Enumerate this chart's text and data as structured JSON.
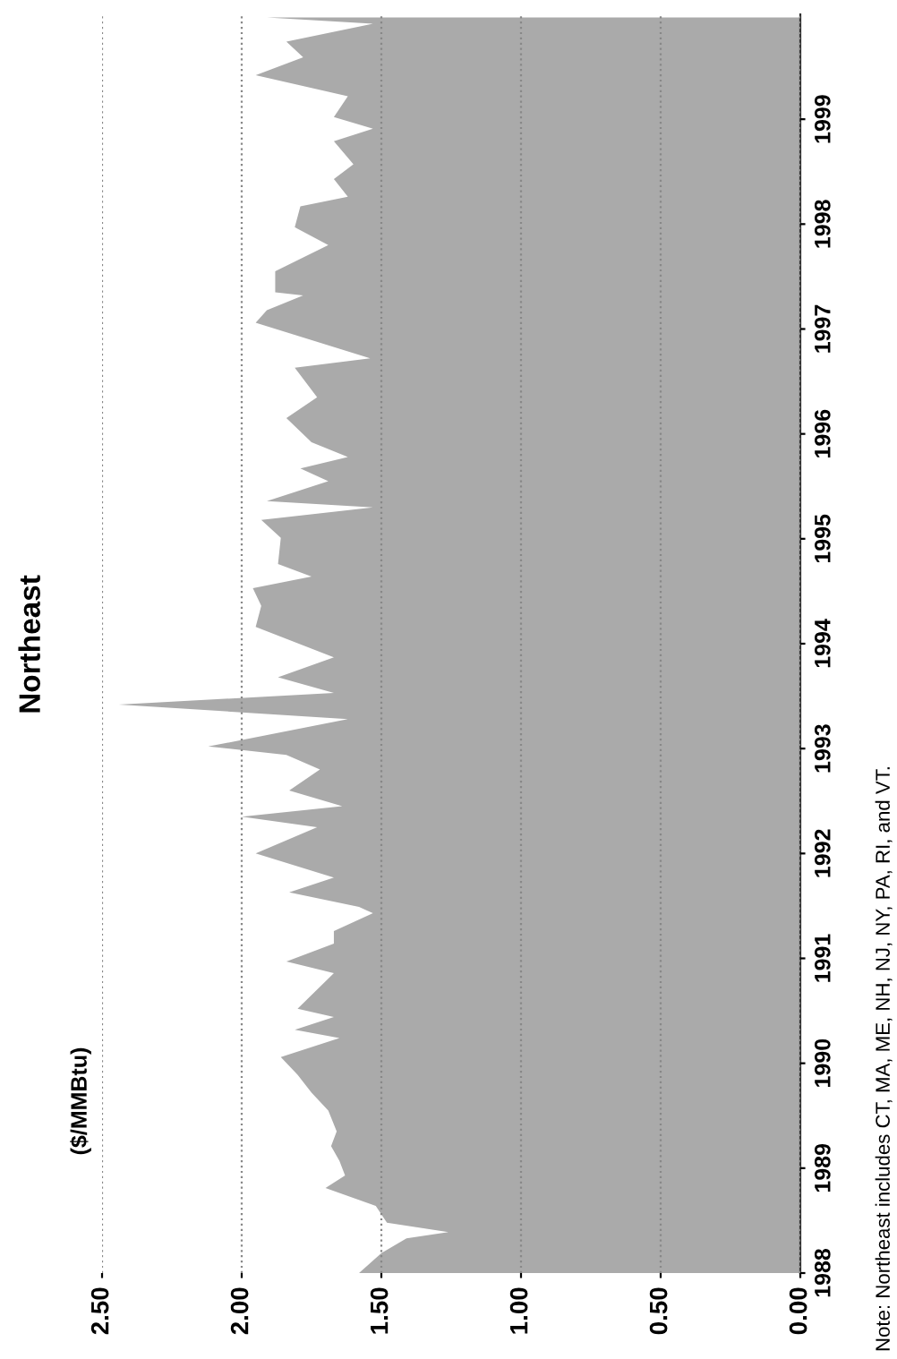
{
  "chart_data": {
    "type": "area",
    "title": "Northeast",
    "orientation": "horizontal",
    "annotations": [
      "($/MMBtu)",
      "Note: Northeast includes CT, MA, ME, NH, NJ, NY, PA, RI, and VT."
    ],
    "x": [
      1988.0,
      1988.19,
      1988.33,
      1988.39,
      1988.48,
      1988.64,
      1988.81,
      1988.93,
      1989.07,
      1989.21,
      1989.35,
      1989.55,
      1989.72,
      1989.89,
      1990.06,
      1990.24,
      1990.32,
      1990.44,
      1990.52,
      1990.86,
      1990.97,
      1991.14,
      1991.26,
      1991.43,
      1991.49,
      1991.63,
      1991.77,
      1992.0,
      1992.25,
      1992.35,
      1992.45,
      1992.6,
      1992.8,
      1992.94,
      1993.02,
      1993.28,
      1993.42,
      1993.53,
      1993.68,
      1993.87,
      1994.16,
      1994.36,
      1994.53,
      1994.64,
      1994.76,
      1995.01,
      1995.18,
      1995.3,
      1995.36,
      1995.55,
      1995.67,
      1995.78,
      1995.92,
      1996.15,
      1996.35,
      1996.63,
      1996.72,
      1997.06,
      1997.18,
      1997.32,
      1997.35,
      1997.55,
      1997.8,
      1997.97,
      1998.17,
      1998.26,
      1998.43,
      1998.57,
      1998.79,
      1998.91,
      1999.02,
      1999.22,
      1999.42,
      1999.59,
      1999.74,
      1999.91,
      1999.97
    ],
    "series": [
      {
        "color": "#aaaaaa",
        "values": [
          1.58,
          1.5,
          1.41,
          1.26,
          1.48,
          1.52,
          1.7,
          1.63,
          1.65,
          1.68,
          1.66,
          1.69,
          1.75,
          1.8,
          1.86,
          1.65,
          1.81,
          1.67,
          1.8,
          1.67,
          1.84,
          1.67,
          1.67,
          1.53,
          1.58,
          1.83,
          1.67,
          1.95,
          1.73,
          2.0,
          1.64,
          1.83,
          1.72,
          1.84,
          2.12,
          1.62,
          2.44,
          1.67,
          1.87,
          1.67,
          1.95,
          1.93,
          1.96,
          1.75,
          1.87,
          1.86,
          1.93,
          1.53,
          1.91,
          1.69,
          1.79,
          1.62,
          1.75,
          1.84,
          1.73,
          1.81,
          1.54,
          1.95,
          1.91,
          1.78,
          1.88,
          1.88,
          1.69,
          1.81,
          1.79,
          1.62,
          1.67,
          1.6,
          1.67,
          1.53,
          1.67,
          1.62,
          1.95,
          1.78,
          1.84,
          1.53,
          1.91
        ]
      }
    ],
    "ylim": [
      1988,
      2000
    ],
    "yticks": [
      1988,
      1989,
      1990,
      1991,
      1992,
      1993,
      1994,
      1995,
      1996,
      1997,
      1998,
      1999
    ],
    "xlim": [
      2.5,
      0
    ],
    "xticks": [
      {
        "value": 0,
        "label": "0.00"
      },
      {
        "value": 0.5,
        "label": "0.50"
      },
      {
        "value": 1.0,
        "label": "1.00"
      },
      {
        "value": 1.5,
        "label": "1.50"
      },
      {
        "value": 2.0,
        "label": "2.00"
      },
      {
        "value": 2.5,
        "label": "2.50"
      }
    ],
    "grid": "x"
  }
}
